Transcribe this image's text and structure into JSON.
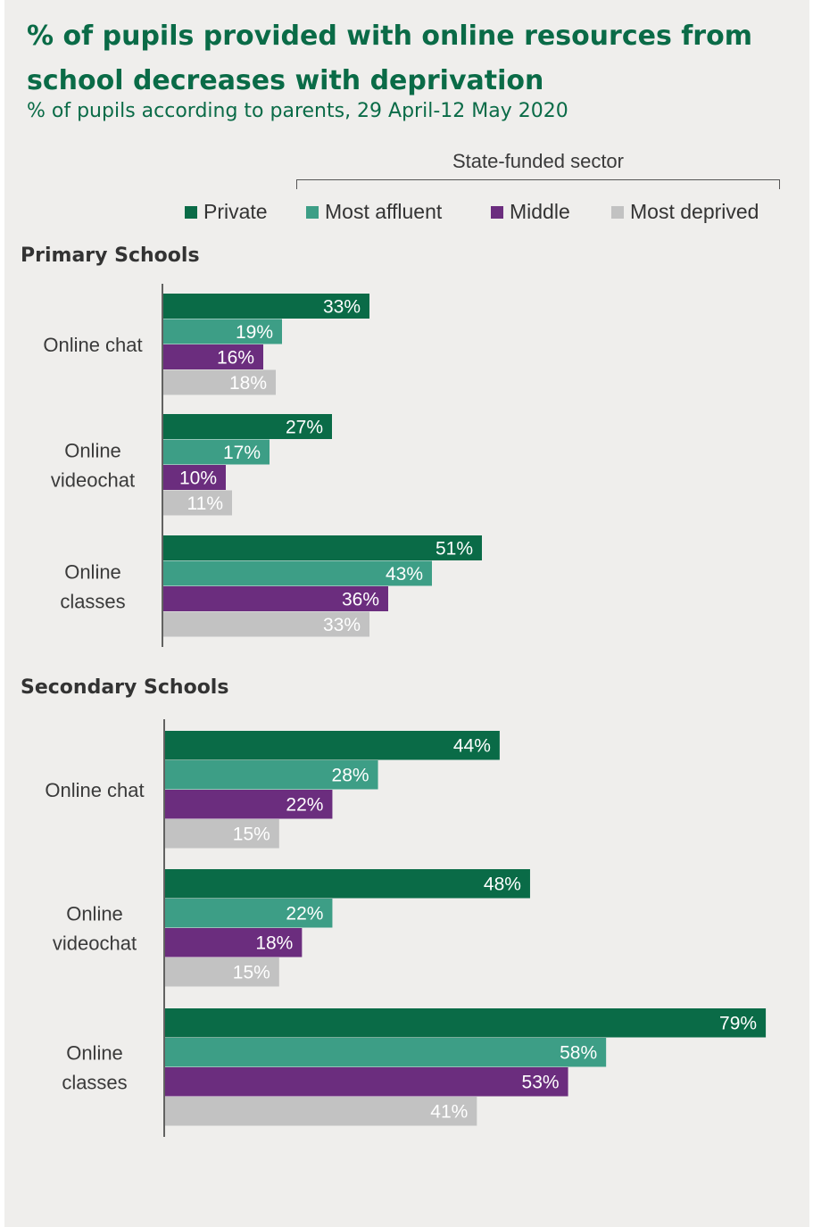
{
  "header": {
    "title": "% of pupils provided with online resources from school decreases with deprivation",
    "subtitle": "% of pupils according to parents, 29 April-12 May 2020",
    "group_label": "State-funded  sector"
  },
  "colors": {
    "Private": "#0a6b47",
    "Most affluent": "#3d9e86",
    "Middle": "#6b2d7e",
    "Most deprived": "#c2c2c2"
  },
  "legend": [
    {
      "name": "Private",
      "color": "#0a6b47"
    },
    {
      "name": "Most affluent",
      "color": "#3d9e86"
    },
    {
      "name": "Middle",
      "color": "#6b2d7e"
    },
    {
      "name": "Most deprived",
      "color": "#c2c2c2"
    }
  ],
  "chart_data": [
    {
      "type": "bar",
      "orientation": "horizontal",
      "title": "Primary Schools",
      "categories": [
        "Online chat",
        "Online videochat",
        "Online classes"
      ],
      "category_lines": [
        [
          "Online chat"
        ],
        [
          "Online",
          "videochat"
        ],
        [
          "Online",
          "classes"
        ]
      ],
      "series": [
        {
          "name": "Private",
          "values": [
            33,
            27,
            51
          ]
        },
        {
          "name": "Most affluent",
          "values": [
            19,
            17,
            43
          ]
        },
        {
          "name": "Middle",
          "values": [
            16,
            10,
            36
          ]
        },
        {
          "name": "Most deprived",
          "values": [
            18,
            11,
            33
          ]
        }
      ],
      "value_suffix": "%"
    },
    {
      "type": "bar",
      "orientation": "horizontal",
      "title": "Secondary Schools",
      "categories": [
        "Online chat",
        "Online videochat",
        "Online classes"
      ],
      "category_lines": [
        [
          "Online chat"
        ],
        [
          "Online",
          "videochat"
        ],
        [
          "Online",
          "classes"
        ]
      ],
      "series": [
        {
          "name": "Private",
          "values": [
            44,
            48,
            79
          ]
        },
        {
          "name": "Most affluent",
          "values": [
            28,
            22,
            58
          ]
        },
        {
          "name": "Middle",
          "values": [
            22,
            18,
            53
          ]
        },
        {
          "name": "Most deprived",
          "values": [
            15,
            15,
            41
          ]
        }
      ],
      "value_suffix": "%"
    }
  ]
}
